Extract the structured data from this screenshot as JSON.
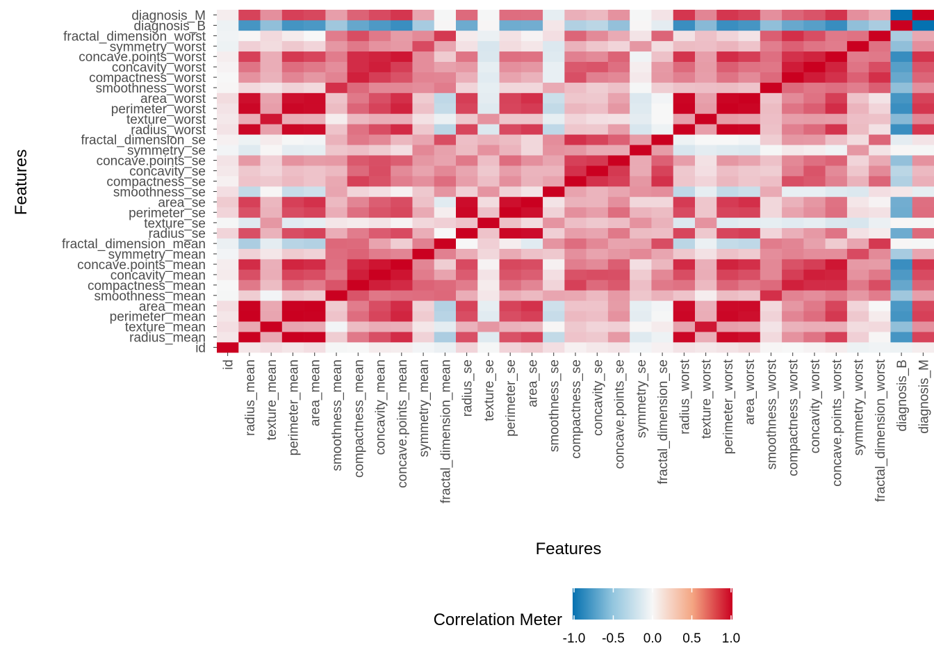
{
  "chart_data": {
    "type": "heatmap",
    "xlabel": "Features",
    "ylabel": "Features",
    "features": [
      "id",
      "radius_mean",
      "texture_mean",
      "perimeter_mean",
      "area_mean",
      "smoothness_mean",
      "compactness_mean",
      "concavity_mean",
      "concave.points_mean",
      "symmetry_mean",
      "fractal_dimension_mean",
      "radius_se",
      "texture_se",
      "perimeter_se",
      "area_se",
      "smoothness_se",
      "compactness_se",
      "concavity_se",
      "concave.points_se",
      "symmetry_se",
      "fractal_dimension_se",
      "radius_worst",
      "texture_worst",
      "perimeter_worst",
      "area_worst",
      "smoothness_worst",
      "compactness_worst",
      "concavity_worst",
      "concave.points_worst",
      "symmetry_worst",
      "fractal_dimension_worst",
      "diagnosis_B",
      "diagnosis_M"
    ],
    "value_range": [
      -1,
      1
    ],
    "colorscale": {
      "low": "#0571b0",
      "mid": "#f7f7f7",
      "high": "#ca0020"
    },
    "legend": {
      "title": "Correlation Meter",
      "ticks": [
        "-1.0",
        "-0.5",
        "0.0",
        "0.5",
        "1.0"
      ],
      "tick_values": [
        -1,
        -0.5,
        0,
        0.5,
        1
      ],
      "position": "bottom"
    },
    "grid": true,
    "matrix": [
      [
        1.0,
        0.07,
        0.1,
        0.07,
        0.1,
        -0.01,
        0.0,
        0.05,
        0.04,
        -0.02,
        -0.05,
        0.14,
        -0.01,
        0.14,
        0.18,
        0.1,
        0.03,
        0.06,
        0.08,
        -0.02,
        0.03,
        0.08,
        0.06,
        0.08,
        0.11,
        0.01,
        -0.0,
        0.02,
        0.04,
        -0.04,
        -0.03,
        -0.04,
        0.04
      ],
      [
        0.07,
        1.0,
        0.32,
        1.0,
        0.99,
        0.17,
        0.51,
        0.68,
        0.82,
        0.15,
        -0.31,
        0.68,
        -0.1,
        0.67,
        0.74,
        -0.22,
        0.21,
        0.19,
        0.38,
        -0.1,
        -0.04,
        0.97,
        0.3,
        0.97,
        0.94,
        0.12,
        0.41,
        0.53,
        0.74,
        0.16,
        0.01,
        -0.73,
        0.73
      ],
      [
        0.1,
        0.32,
        1.0,
        0.33,
        0.32,
        -0.02,
        0.24,
        0.3,
        0.29,
        0.07,
        -0.08,
        0.28,
        0.39,
        0.28,
        0.26,
        0.01,
        0.19,
        0.14,
        0.16,
        0.01,
        0.05,
        0.35,
        0.91,
        0.36,
        0.34,
        0.08,
        0.28,
        0.3,
        0.3,
        0.11,
        0.12,
        -0.42,
        0.42
      ],
      [
        0.07,
        1.0,
        0.33,
        1.0,
        0.99,
        0.21,
        0.56,
        0.72,
        0.85,
        0.18,
        -0.26,
        0.69,
        -0.09,
        0.69,
        0.74,
        -0.2,
        0.25,
        0.23,
        0.41,
        -0.08,
        -0.01,
        0.97,
        0.3,
        0.97,
        0.94,
        0.15,
        0.46,
        0.56,
        0.77,
        0.19,
        0.05,
        -0.74,
        0.74
      ],
      [
        0.1,
        0.99,
        0.32,
        0.99,
        1.0,
        0.18,
        0.5,
        0.69,
        0.82,
        0.15,
        -0.28,
        0.73,
        -0.07,
        0.73,
        0.8,
        -0.17,
        0.21,
        0.21,
        0.37,
        -0.07,
        -0.02,
        0.96,
        0.29,
        0.96,
        0.96,
        0.12,
        0.39,
        0.51,
        0.72,
        0.14,
        0.0,
        -0.71,
        0.71
      ],
      [
        -0.01,
        0.17,
        -0.02,
        0.21,
        0.18,
        1.0,
        0.66,
        0.52,
        0.55,
        0.56,
        0.58,
        0.3,
        0.07,
        0.3,
        0.25,
        0.33,
        0.32,
        0.25,
        0.38,
        0.2,
        0.28,
        0.21,
        0.04,
        0.24,
        0.21,
        0.81,
        0.47,
        0.43,
        0.5,
        0.39,
        0.5,
        -0.36,
        0.36
      ],
      [
        0.0,
        0.51,
        0.24,
        0.56,
        0.5,
        0.66,
        1.0,
        0.88,
        0.83,
        0.6,
        0.57,
        0.5,
        0.05,
        0.55,
        0.46,
        0.14,
        0.74,
        0.57,
        0.64,
        0.23,
        0.51,
        0.54,
        0.25,
        0.59,
        0.51,
        0.57,
        0.87,
        0.82,
        0.82,
        0.51,
        0.69,
        -0.6,
        0.6
      ],
      [
        0.05,
        0.68,
        0.3,
        0.72,
        0.69,
        0.52,
        0.88,
        1.0,
        0.92,
        0.5,
        0.34,
        0.63,
        0.08,
        0.66,
        0.62,
        0.1,
        0.67,
        0.69,
        0.68,
        0.18,
        0.45,
        0.69,
        0.3,
        0.73,
        0.68,
        0.45,
        0.75,
        0.88,
        0.86,
        0.41,
        0.51,
        -0.7,
        0.7
      ],
      [
        0.04,
        0.82,
        0.29,
        0.85,
        0.82,
        0.55,
        0.83,
        0.92,
        1.0,
        0.46,
        0.17,
        0.7,
        0.02,
        0.71,
        0.69,
        0.03,
        0.49,
        0.44,
        0.62,
        0.1,
        0.26,
        0.83,
        0.29,
        0.86,
        0.81,
        0.45,
        0.67,
        0.75,
        0.91,
        0.38,
        0.37,
        -0.78,
        0.78
      ],
      [
        -0.02,
        0.15,
        0.07,
        0.18,
        0.15,
        0.56,
        0.6,
        0.5,
        0.46,
        1.0,
        0.48,
        0.3,
        0.13,
        0.31,
        0.22,
        0.19,
        0.42,
        0.34,
        0.39,
        0.45,
        0.33,
        0.19,
        0.09,
        0.22,
        0.18,
        0.43,
        0.47,
        0.43,
        0.43,
        0.7,
        0.44,
        -0.33,
        0.33
      ],
      [
        -0.05,
        -0.31,
        -0.08,
        -0.26,
        -0.28,
        0.58,
        0.57,
        0.34,
        0.17,
        0.48,
        1.0,
        0.0,
        0.16,
        0.04,
        -0.09,
        0.4,
        0.56,
        0.45,
        0.34,
        0.35,
        0.69,
        -0.25,
        -0.05,
        -0.21,
        -0.23,
        0.5,
        0.46,
        0.35,
        0.18,
        0.33,
        0.77,
        0.01,
        -0.01
      ],
      [
        0.14,
        0.68,
        0.28,
        0.69,
        0.73,
        0.3,
        0.5,
        0.63,
        0.7,
        0.3,
        0.0,
        1.0,
        0.21,
        0.97,
        0.95,
        0.16,
        0.36,
        0.33,
        0.51,
        0.24,
        0.23,
        0.72,
        0.19,
        0.72,
        0.75,
        0.14,
        0.29,
        0.38,
        0.53,
        0.09,
        0.05,
        -0.57,
        0.57
      ],
      [
        -0.01,
        -0.1,
        0.39,
        -0.09,
        -0.07,
        0.07,
        0.05,
        0.08,
        0.02,
        0.13,
        0.16,
        0.21,
        1.0,
        0.22,
        0.11,
        0.4,
        0.23,
        0.19,
        0.23,
        0.41,
        0.28,
        -0.11,
        0.41,
        -0.1,
        -0.08,
        -0.07,
        -0.09,
        -0.07,
        -0.12,
        -0.13,
        -0.05,
        0.01,
        -0.01
      ],
      [
        0.14,
        0.67,
        0.28,
        0.69,
        0.73,
        0.3,
        0.55,
        0.66,
        0.71,
        0.31,
        0.04,
        0.97,
        0.22,
        1.0,
        0.94,
        0.15,
        0.42,
        0.36,
        0.56,
        0.27,
        0.24,
        0.7,
        0.2,
        0.72,
        0.73,
        0.13,
        0.34,
        0.42,
        0.55,
        0.11,
        0.09,
        -0.56,
        0.56
      ],
      [
        0.18,
        0.74,
        0.26,
        0.74,
        0.8,
        0.25,
        0.46,
        0.62,
        0.69,
        0.22,
        -0.09,
        0.95,
        0.11,
        0.94,
        1.0,
        0.08,
        0.28,
        0.27,
        0.42,
        0.13,
        0.13,
        0.76,
        0.2,
        0.76,
        0.81,
        0.13,
        0.28,
        0.39,
        0.54,
        0.07,
        0.02,
        -0.55,
        0.55
      ],
      [
        0.1,
        -0.22,
        0.01,
        -0.2,
        -0.17,
        0.33,
        0.14,
        0.1,
        0.03,
        0.19,
        0.4,
        0.16,
        0.4,
        0.15,
        0.08,
        1.0,
        0.34,
        0.27,
        0.33,
        0.41,
        0.43,
        -0.23,
        -0.07,
        -0.22,
        -0.18,
        0.31,
        -0.06,
        -0.06,
        -0.1,
        -0.11,
        0.1,
        0.07,
        -0.07
      ],
      [
        0.03,
        0.21,
        0.19,
        0.25,
        0.21,
        0.32,
        0.74,
        0.67,
        0.49,
        0.42,
        0.56,
        0.36,
        0.23,
        0.42,
        0.28,
        0.34,
        1.0,
        0.8,
        0.74,
        0.39,
        0.8,
        0.2,
        0.14,
        0.26,
        0.2,
        0.23,
        0.68,
        0.64,
        0.48,
        0.28,
        0.59,
        -0.29,
        0.29
      ],
      [
        0.06,
        0.19,
        0.14,
        0.23,
        0.21,
        0.25,
        0.57,
        0.69,
        0.44,
        0.34,
        0.45,
        0.33,
        0.19,
        0.36,
        0.27,
        0.27,
        0.8,
        1.0,
        0.77,
        0.31,
        0.73,
        0.19,
        0.1,
        0.23,
        0.19,
        0.17,
        0.48,
        0.66,
        0.44,
        0.2,
        0.44,
        -0.25,
        0.25
      ],
      [
        0.08,
        0.38,
        0.16,
        0.41,
        0.37,
        0.38,
        0.64,
        0.68,
        0.62,
        0.39,
        0.34,
        0.51,
        0.23,
        0.56,
        0.42,
        0.33,
        0.74,
        0.77,
        1.0,
        0.31,
        0.61,
        0.36,
        0.09,
        0.39,
        0.34,
        0.22,
        0.45,
        0.55,
        0.6,
        0.14,
        0.31,
        -0.41,
        0.41
      ],
      [
        -0.02,
        -0.1,
        0.01,
        -0.08,
        -0.07,
        0.2,
        0.23,
        0.18,
        0.1,
        0.45,
        0.35,
        0.24,
        0.41,
        0.27,
        0.13,
        0.41,
        0.39,
        0.31,
        0.31,
        1.0,
        0.37,
        -0.13,
        -0.08,
        -0.1,
        -0.11,
        -0.01,
        0.06,
        0.04,
        -0.03,
        0.39,
        0.08,
        0.01,
        -0.01
      ],
      [
        0.03,
        -0.04,
        0.05,
        -0.01,
        -0.02,
        0.28,
        0.51,
        0.45,
        0.26,
        0.33,
        0.69,
        0.23,
        0.28,
        0.24,
        0.13,
        0.43,
        0.8,
        0.73,
        0.61,
        0.37,
        1.0,
        -0.04,
        -0.0,
        -0.0,
        -0.02,
        0.17,
        0.39,
        0.38,
        0.22,
        0.11,
        0.59,
        -0.08,
        0.08
      ],
      [
        0.08,
        0.97,
        0.35,
        0.97,
        0.96,
        0.21,
        0.54,
        0.69,
        0.83,
        0.19,
        -0.25,
        0.72,
        -0.11,
        0.7,
        0.76,
        -0.23,
        0.2,
        0.19,
        0.36,
        -0.13,
        -0.04,
        1.0,
        0.36,
        0.99,
        0.98,
        0.22,
        0.48,
        0.57,
        0.79,
        0.24,
        0.09,
        -0.78,
        0.78
      ],
      [
        0.06,
        0.3,
        0.91,
        0.3,
        0.29,
        0.04,
        0.25,
        0.3,
        0.29,
        0.09,
        -0.05,
        0.19,
        0.41,
        0.2,
        0.2,
        -0.07,
        0.14,
        0.1,
        0.09,
        -0.08,
        -0.0,
        0.36,
        1.0,
        0.37,
        0.35,
        0.23,
        0.36,
        0.37,
        0.36,
        0.23,
        0.22,
        -0.46,
        0.46
      ],
      [
        0.08,
        0.97,
        0.36,
        0.97,
        0.96,
        0.24,
        0.59,
        0.73,
        0.86,
        0.22,
        -0.21,
        0.72,
        -0.1,
        0.72,
        0.76,
        -0.22,
        0.26,
        0.23,
        0.39,
        -0.1,
        -0.0,
        0.99,
        0.37,
        1.0,
        0.98,
        0.24,
        0.53,
        0.62,
        0.82,
        0.27,
        0.14,
        -0.78,
        0.78
      ],
      [
        0.11,
        0.94,
        0.34,
        0.94,
        0.96,
        0.21,
        0.51,
        0.68,
        0.81,
        0.18,
        -0.23,
        0.75,
        -0.08,
        0.73,
        0.81,
        -0.18,
        0.2,
        0.19,
        0.34,
        -0.11,
        -0.02,
        0.98,
        0.35,
        0.98,
        1.0,
        0.21,
        0.44,
        0.54,
        0.75,
        0.21,
        0.08,
        -0.73,
        0.73
      ],
      [
        0.01,
        0.12,
        0.08,
        0.15,
        0.12,
        0.81,
        0.57,
        0.45,
        0.45,
        0.43,
        0.5,
        0.14,
        -0.07,
        0.13,
        0.13,
        0.31,
        0.23,
        0.17,
        0.22,
        -0.01,
        0.17,
        0.22,
        0.23,
        0.24,
        0.21,
        1.0,
        0.57,
        0.52,
        0.55,
        0.49,
        0.62,
        -0.42,
        0.42
      ],
      [
        -0.0,
        0.41,
        0.28,
        0.46,
        0.39,
        0.47,
        0.87,
        0.75,
        0.67,
        0.47,
        0.46,
        0.29,
        -0.09,
        0.34,
        0.28,
        -0.06,
        0.68,
        0.48,
        0.45,
        0.06,
        0.39,
        0.48,
        0.36,
        0.53,
        0.44,
        0.57,
        1.0,
        0.89,
        0.8,
        0.61,
        0.81,
        -0.59,
        0.59
      ],
      [
        0.02,
        0.53,
        0.3,
        0.56,
        0.51,
        0.43,
        0.82,
        0.88,
        0.75,
        0.43,
        0.35,
        0.38,
        -0.07,
        0.42,
        0.39,
        -0.06,
        0.64,
        0.66,
        0.55,
        0.04,
        0.38,
        0.57,
        0.37,
        0.62,
        0.54,
        0.52,
        0.89,
        1.0,
        0.86,
        0.53,
        0.69,
        -0.66,
        0.66
      ],
      [
        0.04,
        0.74,
        0.3,
        0.77,
        0.72,
        0.5,
        0.82,
        0.86,
        0.91,
        0.43,
        0.18,
        0.53,
        -0.12,
        0.55,
        0.54,
        -0.1,
        0.48,
        0.44,
        0.6,
        -0.03,
        0.22,
        0.79,
        0.36,
        0.82,
        0.75,
        0.55,
        0.8,
        0.86,
        1.0,
        0.5,
        0.51,
        -0.79,
        0.79
      ],
      [
        -0.04,
        0.16,
        0.11,
        0.19,
        0.14,
        0.39,
        0.51,
        0.41,
        0.38,
        0.7,
        0.33,
        0.09,
        -0.13,
        0.11,
        0.07,
        -0.11,
        0.28,
        0.2,
        0.14,
        0.39,
        0.11,
        0.24,
        0.23,
        0.27,
        0.21,
        0.49,
        0.61,
        0.53,
        0.5,
        1.0,
        0.54,
        -0.42,
        0.42
      ],
      [
        -0.03,
        0.01,
        0.12,
        0.05,
        0.0,
        0.5,
        0.69,
        0.51,
        0.37,
        0.44,
        0.77,
        0.05,
        -0.05,
        0.09,
        0.02,
        0.1,
        0.59,
        0.44,
        0.31,
        0.08,
        0.59,
        0.09,
        0.22,
        0.14,
        0.08,
        0.62,
        0.81,
        0.69,
        0.51,
        0.54,
        1.0,
        -0.32,
        0.32
      ],
      [
        -0.04,
        -0.73,
        -0.42,
        -0.74,
        -0.71,
        -0.36,
        -0.6,
        -0.7,
        -0.78,
        -0.33,
        0.01,
        -0.57,
        0.01,
        -0.56,
        -0.55,
        0.07,
        -0.29,
        -0.25,
        -0.41,
        0.01,
        -0.08,
        -0.78,
        -0.46,
        -0.78,
        -0.73,
        -0.42,
        -0.59,
        -0.66,
        -0.79,
        -0.42,
        -0.32,
        1.0,
        -1.0
      ],
      [
        0.04,
        0.73,
        0.42,
        0.74,
        0.71,
        0.36,
        0.6,
        0.7,
        0.78,
        0.33,
        -0.01,
        0.57,
        -0.01,
        0.56,
        0.55,
        -0.07,
        0.29,
        0.25,
        0.41,
        -0.01,
        0.08,
        0.78,
        0.46,
        0.78,
        0.73,
        0.42,
        0.59,
        0.66,
        0.79,
        0.42,
        0.32,
        -1.0,
        1.0
      ]
    ]
  }
}
